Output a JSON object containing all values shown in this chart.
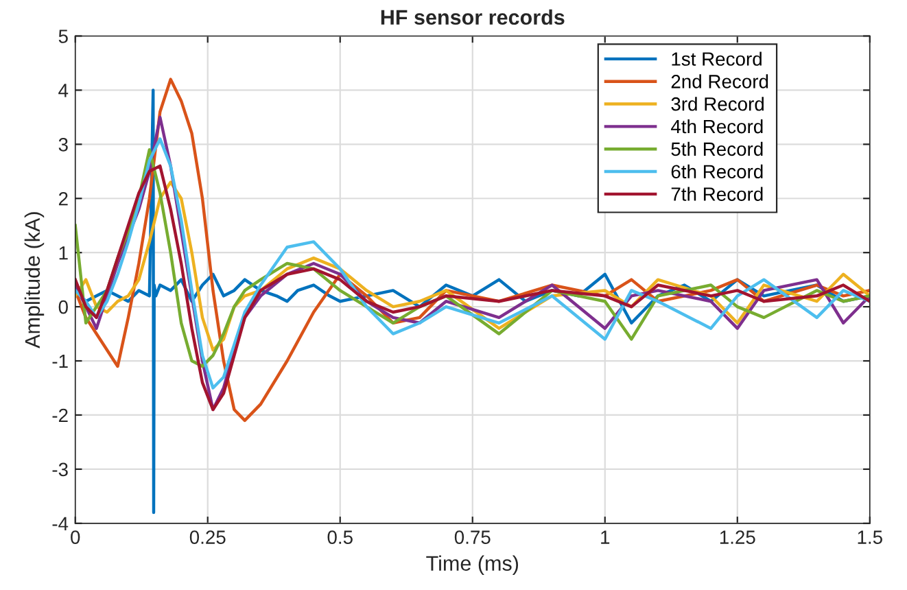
{
  "chart_data": {
    "type": "line",
    "title": "HF sensor records",
    "xlabel": "Time (ms)",
    "ylabel": "Amplitude (kA)",
    "xlim": [
      0,
      1.5
    ],
    "xticks": [
      0,
      0.25,
      0.5,
      0.75,
      1,
      1.25,
      1.5
    ],
    "ylim": [
      -4,
      5
    ],
    "yticks": [
      -4,
      -3,
      -2,
      -1,
      0,
      1,
      2,
      3,
      4,
      5
    ],
    "grid": true,
    "legend": "top right",
    "marker": "none",
    "line_style": "solid",
    "x": [
      0,
      0.02,
      0.04,
      0.06,
      0.08,
      0.1,
      0.12,
      0.14,
      0.16,
      0.18,
      0.2,
      0.22,
      0.24,
      0.26,
      0.28,
      0.3,
      0.32,
      0.35,
      0.4,
      0.45,
      0.5,
      0.55,
      0.6,
      0.65,
      0.7,
      0.8,
      0.9,
      1.0,
      1.05,
      1.1,
      1.2,
      1.25,
      1.3,
      1.4,
      1.45,
      1.5
    ],
    "series": [
      {
        "name": "1st Record",
        "color": "#0072bd",
        "x": [
          0,
          0.02,
          0.04,
          0.06,
          0.08,
          0.1,
          0.12,
          0.14,
          0.147,
          0.148,
          0.149,
          0.152,
          0.16,
          0.18,
          0.2,
          0.22,
          0.24,
          0.26,
          0.28,
          0.3,
          0.32,
          0.35,
          0.38,
          0.4,
          0.42,
          0.45,
          0.48,
          0.5,
          0.55,
          0.6,
          0.65,
          0.7,
          0.75,
          0.8,
          0.85,
          0.9,
          0.95,
          1.0,
          1.05,
          1.1,
          1.15,
          1.2,
          1.25,
          1.3,
          1.35,
          1.4,
          1.45,
          1.5
        ],
        "values": [
          0.3,
          0.1,
          0.2,
          0.3,
          0.2,
          0.1,
          0.3,
          0.2,
          4.0,
          -3.8,
          0.4,
          0.2,
          0.4,
          0.3,
          0.5,
          0.1,
          0.4,
          0.6,
          0.2,
          0.3,
          0.5,
          0.3,
          0.2,
          0.1,
          0.3,
          0.4,
          0.2,
          0.1,
          0.2,
          0.3,
          0.0,
          0.4,
          0.2,
          0.5,
          0.1,
          0.3,
          0.2,
          0.6,
          -0.3,
          0.2,
          0.4,
          0.1,
          0.5,
          0.2,
          0.3,
          0.4,
          0.1,
          0.2
        ]
      },
      {
        "name": "2nd Record",
        "color": "#d95319",
        "values": [
          0.3,
          -0.2,
          -0.5,
          -0.8,
          -1.1,
          -0.2,
          0.8,
          2.0,
          3.6,
          4.2,
          3.8,
          3.2,
          2.0,
          0.3,
          -1.0,
          -1.9,
          -2.1,
          -1.8,
          -1.0,
          -0.1,
          0.6,
          0.2,
          -0.3,
          -0.2,
          0.3,
          0.1,
          0.4,
          0.2,
          0.5,
          0.1,
          0.3,
          0.5,
          0.1,
          0.4,
          0.2,
          0.3
        ]
      },
      {
        "name": "3rd Record",
        "color": "#edb120",
        "values": [
          0.2,
          0.5,
          0.0,
          -0.1,
          0.1,
          0.2,
          0.5,
          1.2,
          2.0,
          2.3,
          2.0,
          1.0,
          -0.2,
          -0.8,
          -0.6,
          0.0,
          0.2,
          0.3,
          0.7,
          0.9,
          0.7,
          0.3,
          0.0,
          0.1,
          0.3,
          -0.4,
          0.2,
          0.3,
          0.0,
          0.5,
          0.2,
          -0.3,
          0.4,
          0.1,
          0.6,
          0.2
        ]
      },
      {
        "name": "4th Record",
        "color": "#7e2f8e",
        "values": [
          0.4,
          0.0,
          -0.4,
          0.2,
          0.8,
          1.3,
          1.8,
          2.5,
          3.5,
          2.6,
          1.4,
          0.2,
          -1.0,
          -1.9,
          -1.5,
          -0.8,
          -0.2,
          0.2,
          0.6,
          0.8,
          0.6,
          0.1,
          -0.2,
          -0.3,
          0.1,
          -0.2,
          0.4,
          -0.4,
          0.2,
          0.3,
          0.1,
          -0.4,
          0.3,
          0.5,
          -0.3,
          0.2
        ]
      },
      {
        "name": "5th Record",
        "color": "#77ac30",
        "values": [
          1.5,
          -0.3,
          0.0,
          0.3,
          0.9,
          1.4,
          2.0,
          2.9,
          2.1,
          1.0,
          -0.3,
          -1.0,
          -1.1,
          -0.9,
          -0.5,
          0.0,
          0.3,
          0.5,
          0.8,
          0.7,
          0.3,
          0.0,
          -0.3,
          0.0,
          0.2,
          -0.5,
          0.3,
          0.1,
          -0.6,
          0.2,
          0.4,
          0.0,
          -0.2,
          0.3,
          0.1,
          0.2
        ]
      },
      {
        "name": "6th Record",
        "color": "#4dbeee",
        "values": [
          0.3,
          0.1,
          -0.2,
          0.1,
          0.6,
          1.2,
          1.9,
          2.7,
          3.1,
          2.6,
          1.6,
          0.3,
          -0.9,
          -1.5,
          -1.3,
          -0.7,
          -0.1,
          0.4,
          1.1,
          1.2,
          0.7,
          0.0,
          -0.5,
          -0.3,
          0.0,
          -0.3,
          0.2,
          -0.6,
          0.3,
          0.1,
          -0.4,
          0.2,
          0.5,
          -0.2,
          0.3,
          0.1
        ]
      },
      {
        "name": "7th Record",
        "color": "#a2142f",
        "values": [
          0.5,
          0.0,
          -0.2,
          0.3,
          0.9,
          1.5,
          2.1,
          2.5,
          2.6,
          1.8,
          0.8,
          -0.4,
          -1.4,
          -1.9,
          -1.6,
          -0.9,
          -0.2,
          0.3,
          0.6,
          0.7,
          0.5,
          0.1,
          -0.1,
          0.0,
          0.2,
          0.1,
          0.3,
          0.2,
          0.0,
          0.4,
          0.2,
          0.3,
          0.1,
          0.2,
          0.4,
          0.1
        ]
      }
    ]
  }
}
